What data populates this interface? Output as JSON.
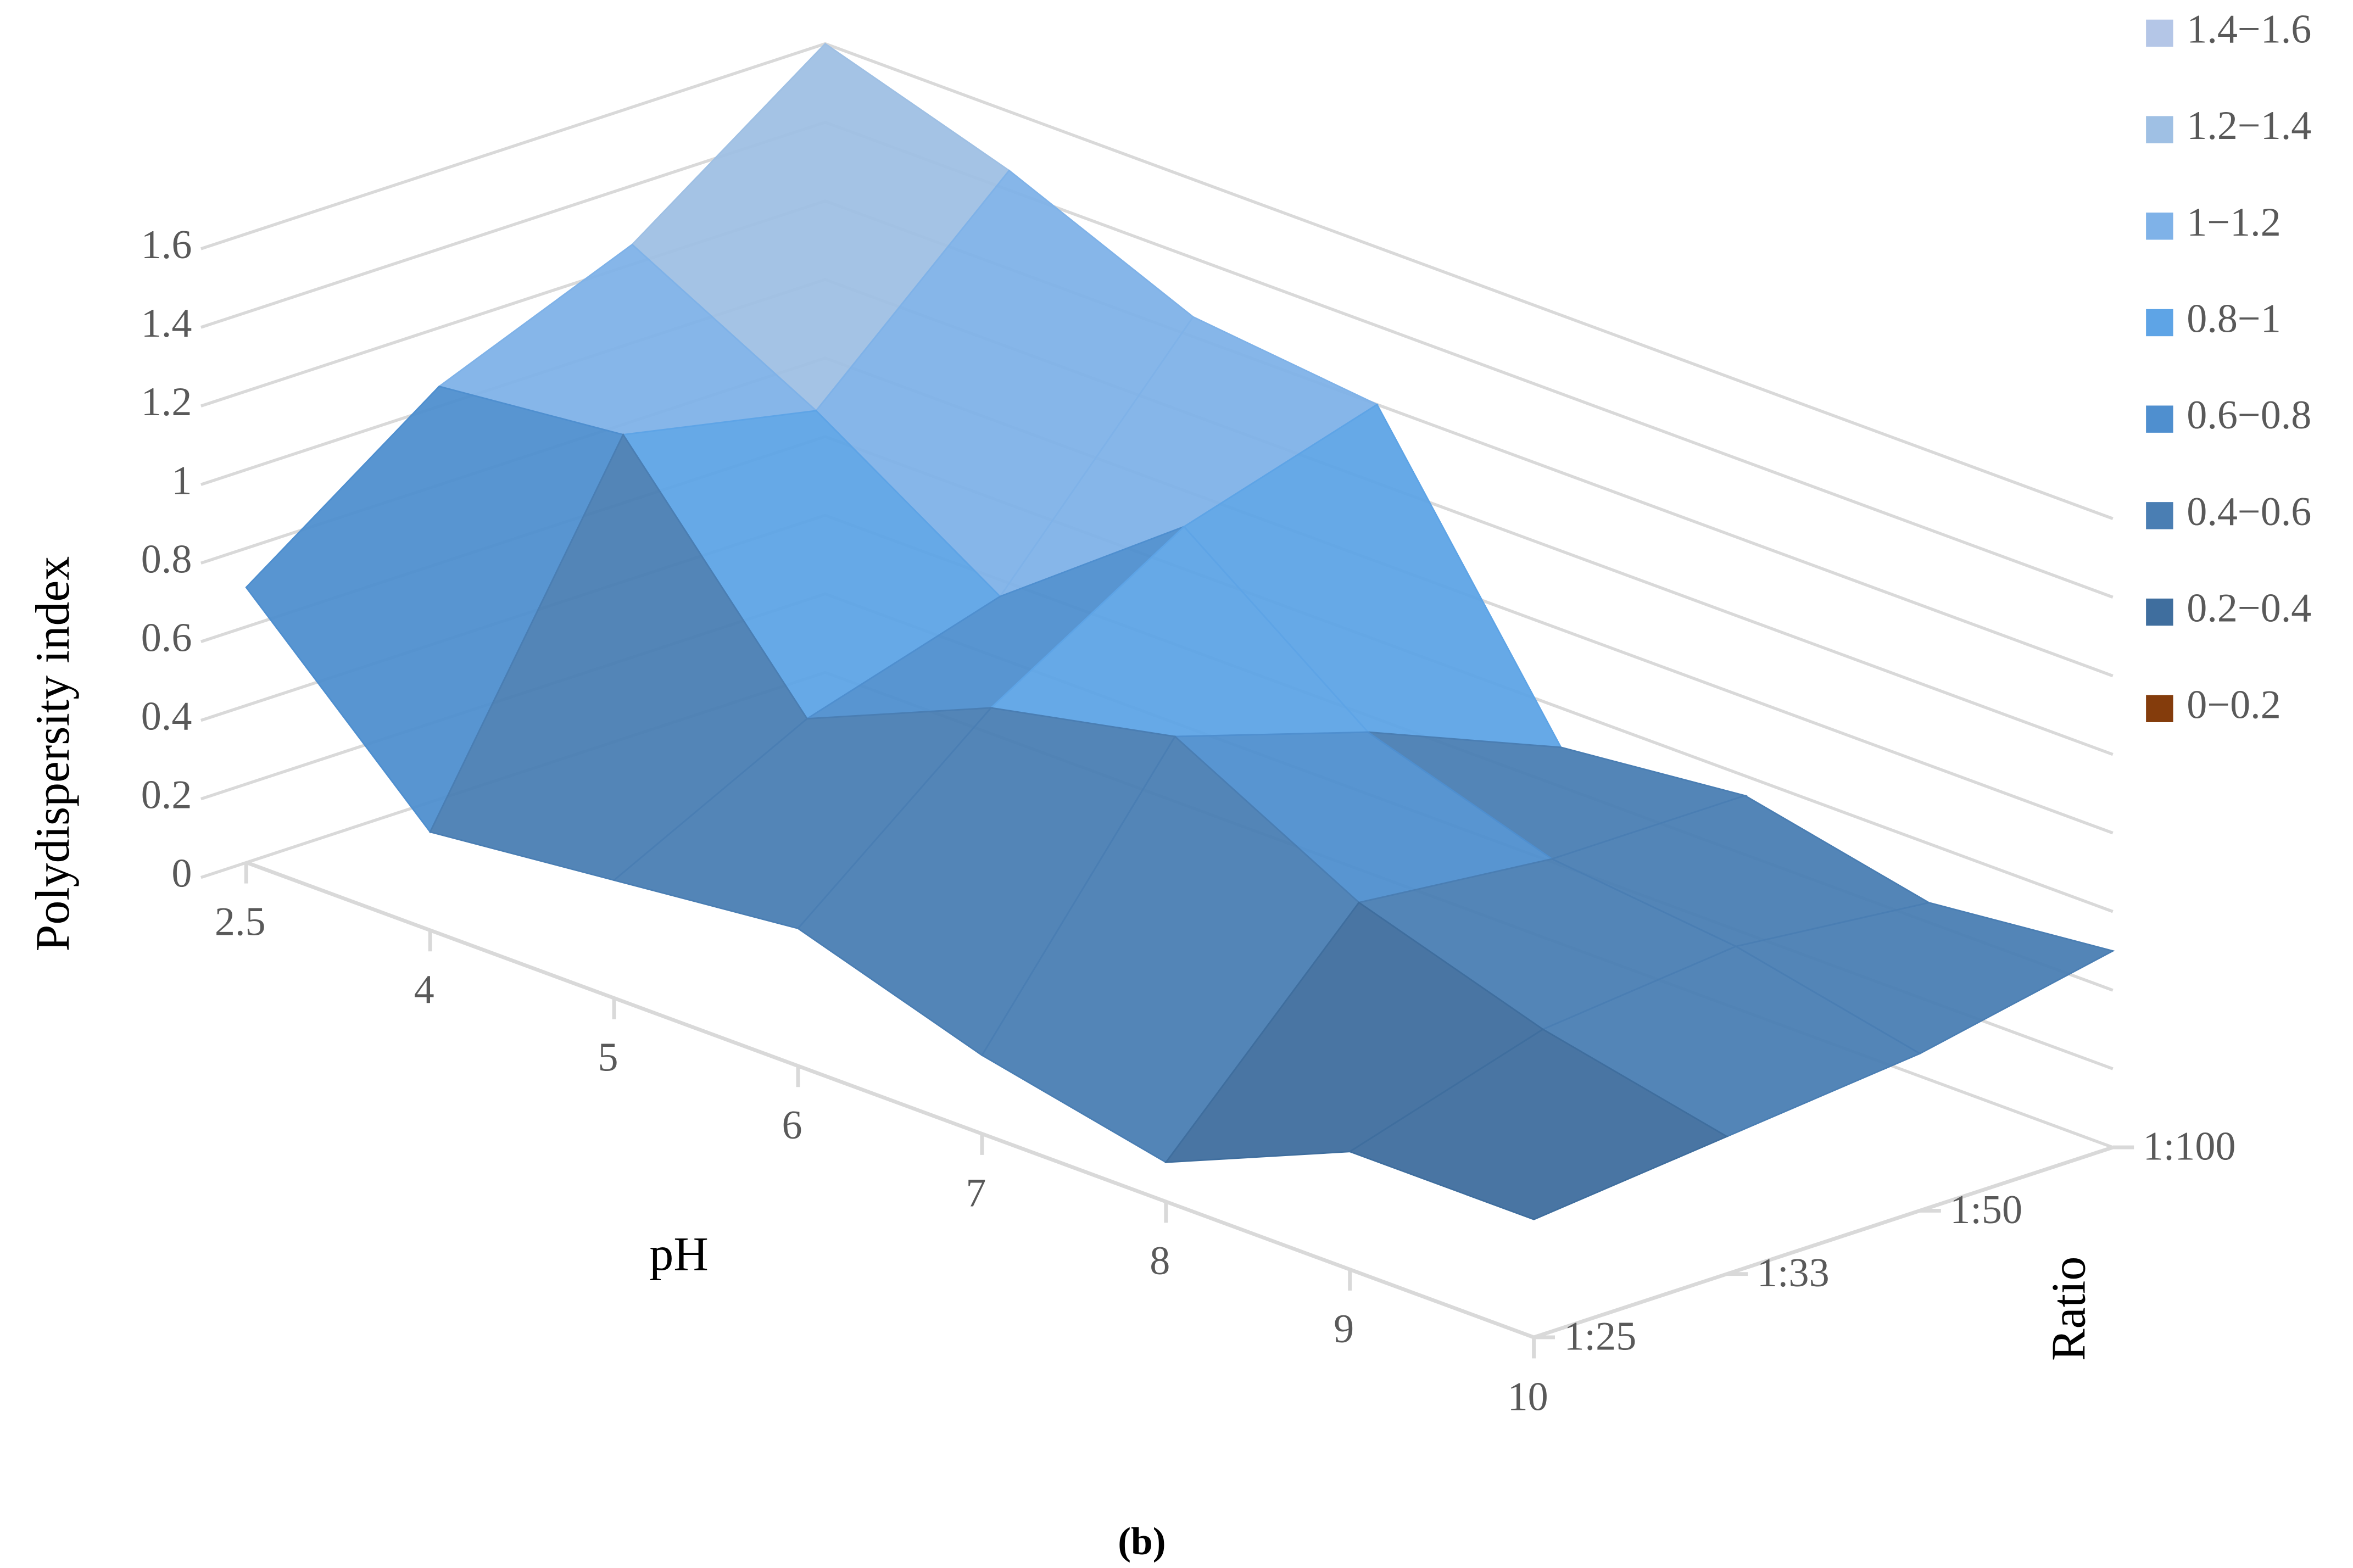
{
  "chart_data": {
    "type": "surface",
    "caption": "(b)",
    "y_label": "Polydispersity index",
    "x_label": "pH",
    "z_label": "Ratio",
    "x": [
      "2.5",
      "4",
      "5",
      "6",
      "7",
      "8",
      "9",
      "10"
    ],
    "z": [
      "1:25",
      "1:33",
      "1:50",
      "1:100"
    ],
    "values": [
      [
        0.7,
        0.25,
        0.3,
        0.35,
        0.2,
        0.1,
        0.3,
        0.3
      ],
      [
        1.05,
        1.1,
        0.55,
        0.75,
        0.85,
        0.6,
        0.45,
        0.35
      ],
      [
        1.25,
        1.0,
        0.7,
        1.05,
        0.7,
        0.55,
        0.5,
        0.4
      ],
      [
        1.6,
        1.45,
        1.25,
        1.2,
        0.5,
        0.55,
        0.45,
        0.5
      ]
    ],
    "ylim": [
      0,
      1.6
    ],
    "yticks": [
      0,
      0.2,
      0.4,
      0.6,
      0.8,
      1,
      1.2,
      1.4,
      1.6
    ],
    "grid": true,
    "bands": [
      {
        "label": "1.4−1.6",
        "min": 1.4,
        "max": 1.6,
        "color": "#b4c6e7"
      },
      {
        "label": "1.2−1.4",
        "min": 1.2,
        "max": 1.4,
        "color": "#9fc0e4"
      },
      {
        "label": "1−1.2",
        "min": 1,
        "max": 1.2,
        "color": "#7fb2e8"
      },
      {
        "label": "0.8−1",
        "min": 0.8,
        "max": 1,
        "color": "#5ea4e6"
      },
      {
        "label": "0.6−0.8",
        "min": 0.6,
        "max": 0.8,
        "color": "#4f8fcf"
      },
      {
        "label": "0.4−0.6",
        "min": 0.4,
        "max": 0.6,
        "color": "#4a7eb3"
      },
      {
        "label": "0.2−0.4",
        "min": 0.2,
        "max": 0.4,
        "color": "#3f6e9e"
      },
      {
        "label": "0−0.2",
        "min": 0,
        "max": 0.2,
        "color": "#843c0c"
      }
    ]
  }
}
